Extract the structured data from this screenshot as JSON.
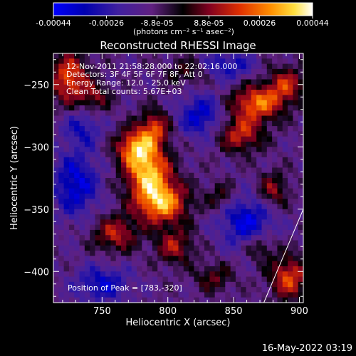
{
  "chart_data": {
    "type": "heatmap",
    "title": "Reconstructed RHESSI Image",
    "xlabel": "Heliocentric X (arcsec)",
    "ylabel": "Heliocentric Y (arcsec)",
    "xlim": [
      713,
      903
    ],
    "ylim": [
      -425,
      -225
    ],
    "x_ticks": [
      750,
      800,
      850,
      900
    ],
    "y_ticks": [
      -250,
      -300,
      -350,
      -400
    ],
    "colorbar": {
      "min": -0.00044,
      "max": 0.00044,
      "ticks": [
        {
          "value": -0.00044,
          "label": "-0.00044"
        },
        {
          "value": -0.00026,
          "label": "-0.00026"
        },
        {
          "value": -8.8e-05,
          "label": "-8.8e-05"
        },
        {
          "value": 8.8e-05,
          "label": "8.8e-05"
        },
        {
          "value": 0.00026,
          "label": "0.00026"
        },
        {
          "value": 0.00044,
          "label": "0.00044"
        }
      ],
      "unit_label": "(photons cm⁻² s⁻¹ asec⁻²)"
    },
    "annotations": [
      "12-Nov-2011 21:58:28.000 to 22:02:16.000",
      "Detectors: 3F 4F 5F 6F 7F 8F, Att 0",
      "Energy Range: 12.0 - 25.0 keV",
      "Clean    Total counts: 5.67E+03"
    ],
    "peak_label": "Position of Peak = [783,-320]",
    "peak_position": [
      783,
      -320
    ],
    "limb_line": [
      [
        873,
        -425
      ],
      [
        903,
        -350
      ]
    ],
    "sources": [
      {
        "x": 785,
        "y": -320,
        "amp": 1.0,
        "sx": 12,
        "sy": 14
      },
      {
        "x": 795,
        "y": -345,
        "amp": 1.0,
        "sx": 14,
        "sy": 12
      },
      {
        "x": 775,
        "y": -300,
        "amp": 0.85,
        "sx": 10,
        "sy": 10
      },
      {
        "x": 790,
        "y": -285,
        "amp": 0.7,
        "sx": 8,
        "sy": 10
      },
      {
        "x": 760,
        "y": -370,
        "amp": 0.6,
        "sx": 12,
        "sy": 10
      },
      {
        "x": 805,
        "y": -380,
        "amp": 0.55,
        "sx": 10,
        "sy": 10
      },
      {
        "x": 725,
        "y": -245,
        "amp": 0.8,
        "sx": 10,
        "sy": 14
      },
      {
        "x": 745,
        "y": -260,
        "amp": 0.45,
        "sx": 8,
        "sy": 8
      },
      {
        "x": 868,
        "y": -265,
        "amp": 0.85,
        "sx": 14,
        "sy": 10
      },
      {
        "x": 855,
        "y": -290,
        "amp": 0.65,
        "sx": 12,
        "sy": 10
      },
      {
        "x": 890,
        "y": -250,
        "amp": 0.6,
        "sx": 10,
        "sy": 10
      },
      {
        "x": 880,
        "y": -335,
        "amp": 0.5,
        "sx": 8,
        "sy": 10
      },
      {
        "x": 892,
        "y": -405,
        "amp": 0.75,
        "sx": 10,
        "sy": 12
      },
      {
        "x": 870,
        "y": -380,
        "amp": 0.4,
        "sx": 8,
        "sy": 8
      },
      {
        "x": 840,
        "y": -340,
        "amp": 0.35,
        "sx": 8,
        "sy": 8
      },
      {
        "x": 835,
        "y": -405,
        "amp": 0.4,
        "sx": 10,
        "sy": 8
      },
      {
        "x": 815,
        "y": -240,
        "amp": 0.35,
        "sx": 12,
        "sy": 8
      },
      {
        "x": 730,
        "y": -330,
        "amp": -0.6,
        "sx": 12,
        "sy": 18
      },
      {
        "x": 825,
        "y": -275,
        "amp": -0.55,
        "sx": 12,
        "sy": 12
      },
      {
        "x": 860,
        "y": -360,
        "amp": -0.6,
        "sx": 14,
        "sy": 14
      },
      {
        "x": 750,
        "y": -410,
        "amp": -0.5,
        "sx": 14,
        "sy": 10
      },
      {
        "x": 845,
        "y": -235,
        "amp": -0.45,
        "sx": 14,
        "sy": 8
      },
      {
        "x": 735,
        "y": -285,
        "amp": -0.4,
        "sx": 10,
        "sy": 10
      }
    ]
  },
  "footer": {
    "timestamp": "16-May-2022 03:19"
  }
}
